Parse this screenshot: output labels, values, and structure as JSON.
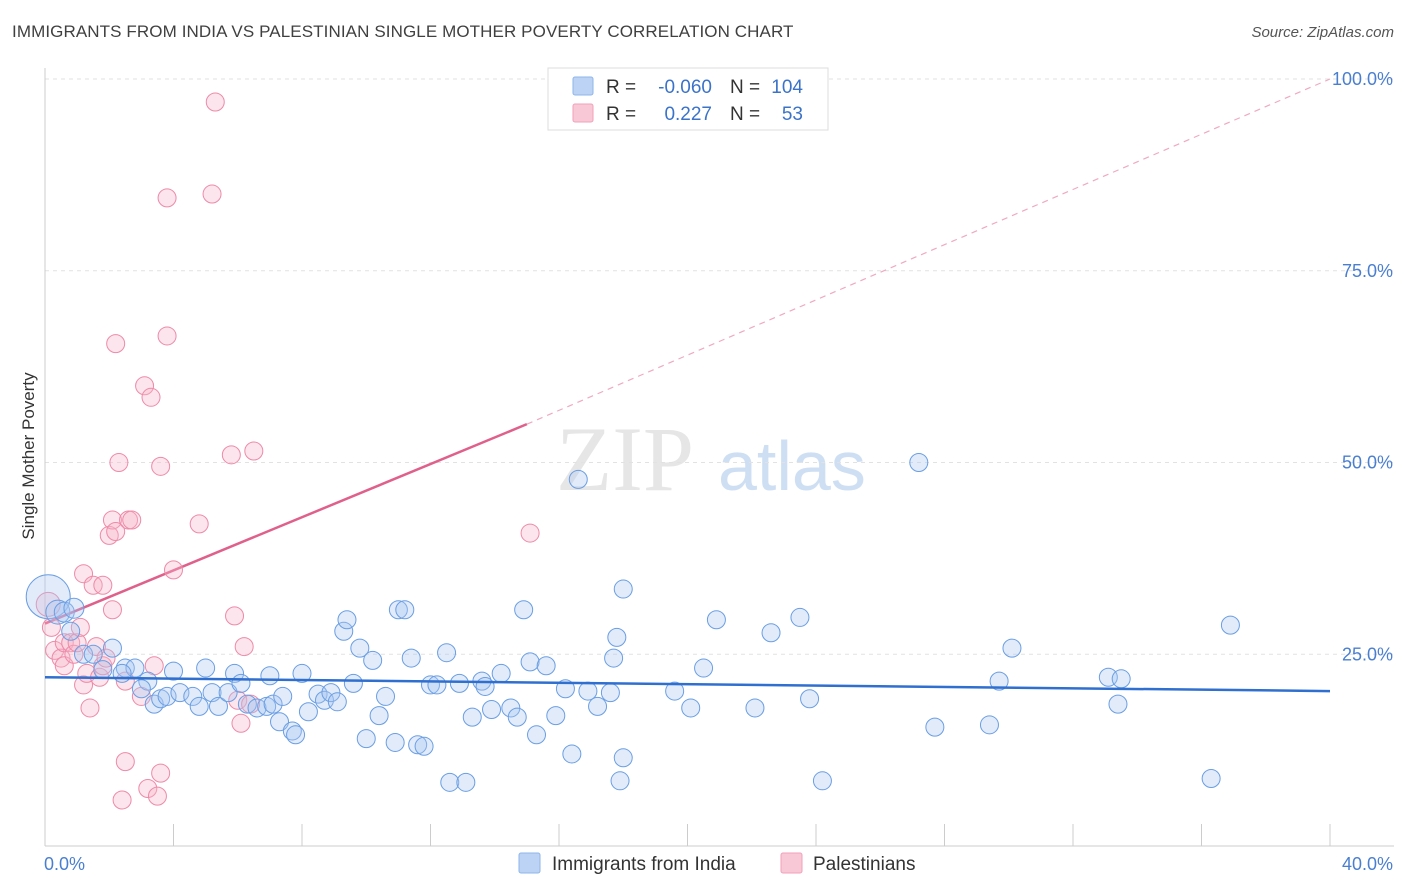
{
  "header": {
    "title": "IMMIGRANTS FROM INDIA VS PALESTINIAN SINGLE MOTHER POVERTY CORRELATION CHART",
    "source": "Source: ZipAtlas.com"
  },
  "watermark": {
    "zip": "ZIP",
    "atlas": "atlas"
  },
  "legend": {
    "rows": [
      {
        "r_label": "R =",
        "r_value": "-0.060",
        "n_label": "N =",
        "n_value": "104",
        "color": "#a9c6f2"
      },
      {
        "r_label": "R =",
        "r_value": "0.227",
        "n_label": "N =",
        "n_value": "53",
        "color": "#f6b5c8"
      }
    ]
  },
  "bottom_legend": [
    {
      "label": "Immigrants from India",
      "color": "#a9c6f2"
    },
    {
      "label": "Palestinians",
      "color": "#f6b5c8"
    }
  ],
  "chart_data": {
    "type": "scatter",
    "title": "IMMIGRANTS FROM INDIA VS PALESTINIAN SINGLE MOTHER POVERTY CORRELATION CHART",
    "xlabel": "",
    "ylabel": "Single Mother Poverty",
    "xlim": [
      0,
      40
    ],
    "ylim": [
      0,
      100
    ],
    "x_ticks": [
      "0.0%",
      "40.0%"
    ],
    "y_ticks": [
      "25.0%",
      "50.0%",
      "75.0%",
      "100.0%"
    ],
    "y_tick_values": [
      25,
      50,
      75,
      100
    ],
    "grid": true,
    "legend_position": "top-center",
    "colors": {
      "india": "#6a9ee3",
      "india_line": "#2f6fd0",
      "pal": "#ee8aa9",
      "pal_line": "#e0608c"
    },
    "series": [
      {
        "name": "Immigrants from India",
        "trend": {
          "x": [
            0,
            40
          ],
          "y": [
            22.0,
            20.2
          ]
        },
        "points": [
          [
            0.1,
            32.5,
            22
          ],
          [
            0.4,
            30.5,
            12
          ],
          [
            0.6,
            30.5,
            10
          ],
          [
            0.9,
            31.0,
            10
          ],
          [
            0.8,
            28.0,
            9
          ],
          [
            1.2,
            25.0,
            9
          ],
          [
            1.5,
            25.0,
            9
          ],
          [
            2.1,
            25.8,
            9
          ],
          [
            1.8,
            23.0,
            9
          ],
          [
            2.5,
            23.2,
            9
          ],
          [
            2.8,
            23.2,
            9
          ],
          [
            2.4,
            22.5,
            9
          ],
          [
            3.2,
            21.5,
            9
          ],
          [
            3.0,
            20.5,
            9
          ],
          [
            3.4,
            18.5,
            9
          ],
          [
            3.6,
            19.2,
            9
          ],
          [
            3.8,
            19.5,
            9
          ],
          [
            4.0,
            22.8,
            9
          ],
          [
            4.2,
            20.0,
            9
          ],
          [
            4.6,
            19.5,
            9
          ],
          [
            4.8,
            18.2,
            9
          ],
          [
            5.0,
            23.2,
            9
          ],
          [
            5.2,
            20.0,
            9
          ],
          [
            5.4,
            18.2,
            9
          ],
          [
            5.7,
            20.0,
            9
          ],
          [
            5.9,
            22.5,
            9
          ],
          [
            6.1,
            21.2,
            9
          ],
          [
            6.3,
            18.5,
            9
          ],
          [
            6.6,
            18.0,
            9
          ],
          [
            6.9,
            18.2,
            9
          ],
          [
            7.0,
            22.2,
            9
          ],
          [
            7.1,
            18.5,
            9
          ],
          [
            7.3,
            16.2,
            9
          ],
          [
            7.4,
            19.5,
            9
          ],
          [
            7.7,
            15.0,
            9
          ],
          [
            7.8,
            14.5,
            9
          ],
          [
            8.0,
            22.5,
            9
          ],
          [
            8.2,
            17.5,
            9
          ],
          [
            8.5,
            19.8,
            9
          ],
          [
            8.7,
            19.0,
            9
          ],
          [
            8.9,
            20.0,
            9
          ],
          [
            9.1,
            18.8,
            9
          ],
          [
            9.3,
            28.0,
            9
          ],
          [
            9.4,
            29.5,
            9
          ],
          [
            9.6,
            21.2,
            9
          ],
          [
            9.8,
            25.8,
            9
          ],
          [
            10.0,
            14.0,
            9
          ],
          [
            10.2,
            24.2,
            9
          ],
          [
            10.4,
            17.0,
            9
          ],
          [
            10.6,
            19.5,
            9
          ],
          [
            10.9,
            13.5,
            9
          ],
          [
            11.0,
            30.8,
            9
          ],
          [
            11.2,
            30.8,
            9
          ],
          [
            11.4,
            24.5,
            9
          ],
          [
            11.6,
            13.2,
            9
          ],
          [
            11.8,
            13.0,
            9
          ],
          [
            12.0,
            21.0,
            9
          ],
          [
            12.2,
            21.0,
            9
          ],
          [
            12.5,
            25.2,
            9
          ],
          [
            12.6,
            8.3,
            9
          ],
          [
            12.9,
            21.2,
            9
          ],
          [
            13.1,
            8.3,
            9
          ],
          [
            13.3,
            16.8,
            9
          ],
          [
            13.6,
            21.5,
            9
          ],
          [
            13.7,
            20.8,
            9
          ],
          [
            13.9,
            17.8,
            9
          ],
          [
            14.2,
            22.5,
            9
          ],
          [
            14.5,
            18.0,
            9
          ],
          [
            14.7,
            16.8,
            9
          ],
          [
            14.9,
            30.8,
            9
          ],
          [
            15.1,
            24.0,
            9
          ],
          [
            15.3,
            14.5,
            9
          ],
          [
            15.6,
            23.5,
            9
          ],
          [
            15.9,
            17.0,
            9
          ],
          [
            16.2,
            20.5,
            9
          ],
          [
            16.4,
            12.0,
            9
          ],
          [
            16.6,
            47.8,
            9
          ],
          [
            16.9,
            20.2,
            9
          ],
          [
            17.2,
            18.2,
            9
          ],
          [
            17.6,
            20.0,
            9
          ],
          [
            17.8,
            27.2,
            9
          ],
          [
            18.0,
            33.5,
            9
          ],
          [
            17.7,
            24.5,
            9
          ],
          [
            17.9,
            8.5,
            9
          ],
          [
            18.0,
            11.5,
            9
          ],
          [
            19.6,
            20.2,
            9
          ],
          [
            20.1,
            18.0,
            9
          ],
          [
            20.5,
            23.2,
            9
          ],
          [
            20.9,
            29.5,
            9
          ],
          [
            22.1,
            18.0,
            9
          ],
          [
            22.6,
            27.8,
            9
          ],
          [
            23.5,
            29.8,
            9
          ],
          [
            23.8,
            19.2,
            9
          ],
          [
            24.2,
            8.5,
            9
          ],
          [
            27.2,
            50.0,
            9
          ],
          [
            27.7,
            15.5,
            9
          ],
          [
            29.4,
            15.8,
            9
          ],
          [
            29.7,
            21.5,
            9
          ],
          [
            30.1,
            25.8,
            9
          ],
          [
            33.1,
            22.0,
            9
          ],
          [
            33.4,
            18.5,
            9
          ],
          [
            33.5,
            21.8,
            9
          ],
          [
            36.3,
            8.8,
            9
          ],
          [
            36.9,
            28.8,
            9
          ]
        ]
      },
      {
        "name": "Palestinians",
        "trend_solid": {
          "x": [
            0,
            15
          ],
          "y": [
            29.0,
            55.0
          ]
        },
        "trend_dashed": {
          "x": [
            15,
            40
          ],
          "y": [
            55.0,
            100.0
          ]
        },
        "points": [
          [
            0.1,
            31.5,
            12
          ],
          [
            0.2,
            28.5,
            9
          ],
          [
            0.3,
            25.5,
            9
          ],
          [
            0.5,
            24.5,
            9
          ],
          [
            0.6,
            26.5,
            9
          ],
          [
            0.6,
            23.5,
            9
          ],
          [
            0.8,
            26.5,
            9
          ],
          [
            0.9,
            25.0,
            9
          ],
          [
            1.0,
            26.5,
            9
          ],
          [
            1.1,
            28.5,
            9
          ],
          [
            1.2,
            35.5,
            9
          ],
          [
            1.2,
            21.0,
            9
          ],
          [
            1.3,
            22.5,
            9
          ],
          [
            1.4,
            18.0,
            9
          ],
          [
            1.5,
            34.0,
            9
          ],
          [
            1.6,
            26.0,
            9
          ],
          [
            1.7,
            22.0,
            9
          ],
          [
            1.8,
            34.0,
            9
          ],
          [
            1.8,
            23.5,
            9
          ],
          [
            1.9,
            24.5,
            9
          ],
          [
            2.0,
            40.5,
            9
          ],
          [
            2.1,
            42.5,
            9
          ],
          [
            2.2,
            41.0,
            9
          ],
          [
            2.1,
            30.8,
            9
          ],
          [
            2.2,
            65.5,
            9
          ],
          [
            2.3,
            50.0,
            9
          ],
          [
            2.5,
            21.5,
            9
          ],
          [
            2.5,
            11.0,
            9
          ],
          [
            2.4,
            6.0,
            9
          ],
          [
            2.6,
            42.5,
            9
          ],
          [
            2.7,
            42.5,
            9
          ],
          [
            3.0,
            19.5,
            9
          ],
          [
            3.1,
            60.0,
            9
          ],
          [
            3.2,
            7.5,
            9
          ],
          [
            3.3,
            58.5,
            9
          ],
          [
            3.4,
            23.5,
            9
          ],
          [
            3.5,
            6.5,
            9
          ],
          [
            3.6,
            49.5,
            9
          ],
          [
            3.6,
            9.5,
            9
          ],
          [
            3.8,
            66.5,
            9
          ],
          [
            3.8,
            84.5,
            9
          ],
          [
            4.0,
            36.0,
            9
          ],
          [
            4.8,
            42.0,
            9
          ],
          [
            5.2,
            85.0,
            9
          ],
          [
            5.3,
            97.0,
            9
          ],
          [
            5.8,
            51.0,
            9
          ],
          [
            5.9,
            30.0,
            9
          ],
          [
            6.0,
            19.0,
            9
          ],
          [
            6.1,
            16.0,
            9
          ],
          [
            6.2,
            26.0,
            9
          ],
          [
            6.5,
            51.5,
            9
          ],
          [
            6.4,
            18.5,
            9
          ],
          [
            15.1,
            40.8,
            9
          ]
        ]
      }
    ]
  }
}
